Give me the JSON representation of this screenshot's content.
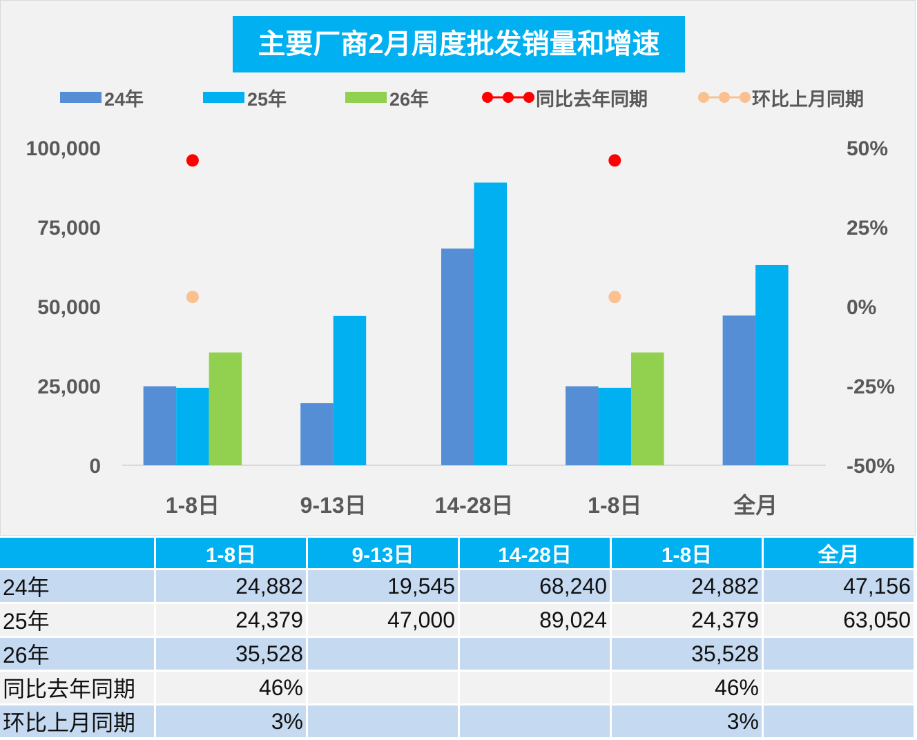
{
  "chart_data": {
    "type": "bar",
    "title": "主要厂商2月周度批发销量和增速",
    "categories": [
      "1-8日",
      "9-13日",
      "14-28日",
      "1-8日",
      "全月"
    ],
    "series": [
      {
        "name": "24年",
        "kind": "bar",
        "axis": "left",
        "color": "#558ed5",
        "values": [
          24882,
          19545,
          68240,
          24882,
          47156
        ]
      },
      {
        "name": "25年",
        "kind": "bar",
        "axis": "left",
        "color": "#00b0f0",
        "values": [
          24379,
          47000,
          89024,
          24379,
          63050
        ]
      },
      {
        "name": "26年",
        "kind": "bar",
        "axis": "left",
        "color": "#92d050",
        "values": [
          35528,
          null,
          null,
          35528,
          null
        ]
      },
      {
        "name": "同比去年同期",
        "kind": "line-markers",
        "axis": "right",
        "color": "#ff0000",
        "values": [
          0.46,
          null,
          null,
          0.46,
          null
        ]
      },
      {
        "name": "环比上月同期",
        "kind": "line-markers",
        "axis": "right",
        "color": "#fac090",
        "values": [
          0.03,
          null,
          null,
          0.03,
          null
        ]
      }
    ],
    "ylim": [
      0,
      100000
    ],
    "yticks": [
      "100,000",
      "75,000",
      "50,000",
      "25,000",
      "0"
    ],
    "y2lim": [
      -0.5,
      0.5
    ],
    "y2ticks": [
      "50%",
      "25%",
      "0%",
      "-25%",
      "-50%"
    ],
    "grid": false,
    "legend": "top"
  },
  "table": {
    "header": [
      "",
      "1-8日",
      "9-13日",
      "14-28日",
      "1-8日",
      "全月"
    ],
    "rows": [
      {
        "label": "24年",
        "cells": [
          "24,882",
          "19,545",
          "68,240",
          "24,882",
          "47,156"
        ]
      },
      {
        "label": "25年",
        "cells": [
          "24,379",
          "47,000",
          "89,024",
          "24,379",
          "63,050"
        ]
      },
      {
        "label": "26年",
        "cells": [
          "35,528",
          "",
          "",
          "35,528",
          ""
        ]
      },
      {
        "label": "同比去年同期",
        "cells": [
          "46%",
          "",
          "",
          "46%",
          ""
        ]
      },
      {
        "label": "环比上月同期",
        "cells": [
          "3%",
          "",
          "",
          "3%",
          ""
        ]
      }
    ]
  }
}
